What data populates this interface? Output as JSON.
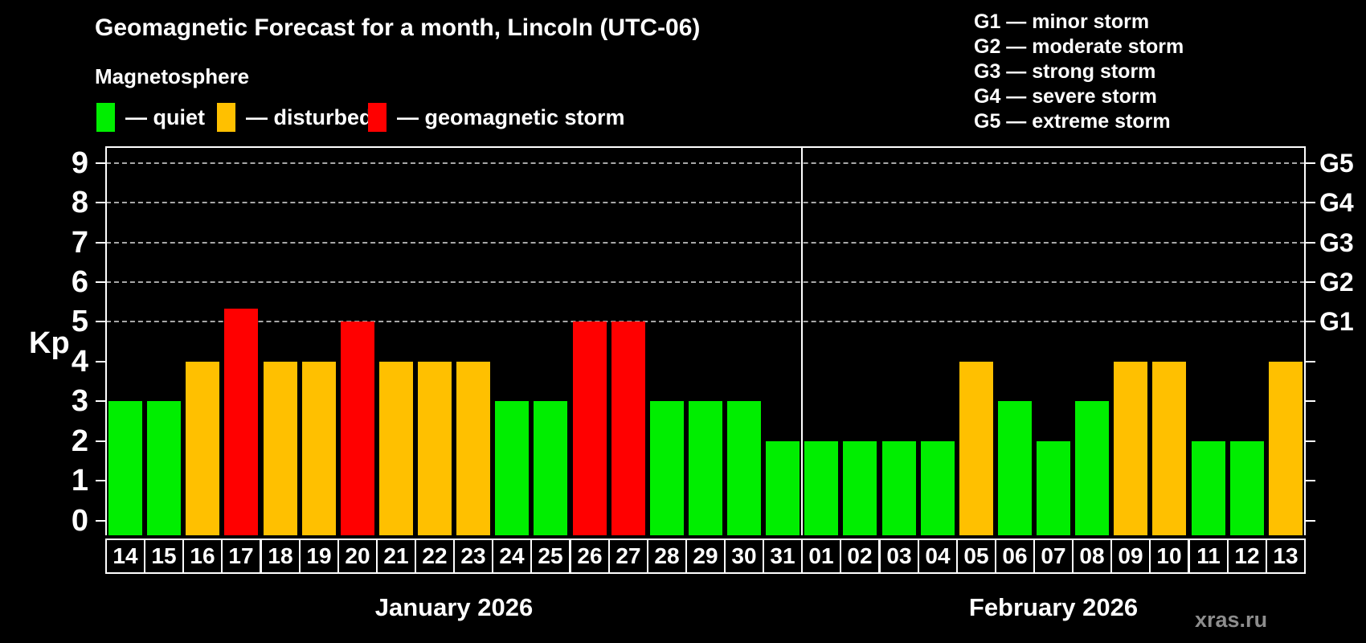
{
  "header": {
    "title": "Geomagnetic Forecast for a month, Lincoln (UTC-06)",
    "subtitle": "Magnetosphere"
  },
  "legend": {
    "items": [
      {
        "key": "quiet",
        "label": "— quiet",
        "color": "#00ee00"
      },
      {
        "key": "disturbed",
        "label": "— disturbed",
        "color": "#ffc000"
      },
      {
        "key": "storm",
        "label": "— geomagnetic storm",
        "color": "#ff0000"
      }
    ]
  },
  "storm_scale_legend": [
    "G1 — minor storm",
    "G2 — moderate storm",
    "G3 — strong storm",
    "G4 — severe storm",
    "G5 — extreme storm"
  ],
  "watermark": "xras.ru",
  "chart_data": {
    "type": "bar",
    "title": "Geomagnetic Forecast for a month, Lincoln (UTC-06)",
    "ylabel": "Kp",
    "ylim": [
      0,
      9
    ],
    "y_ticks": [
      0,
      1,
      2,
      3,
      4,
      5,
      6,
      7,
      8,
      9
    ],
    "gridlines_at_kp": [
      5,
      6,
      7,
      8,
      9
    ],
    "grid_style": "dashed horizontal lines at storm levels only",
    "right_axis_labels": [
      {
        "kp": 5,
        "label": "G1"
      },
      {
        "kp": 6,
        "label": "G2"
      },
      {
        "kp": 7,
        "label": "G3"
      },
      {
        "kp": 8,
        "label": "G4"
      },
      {
        "kp": 9,
        "label": "G5"
      }
    ],
    "colors": {
      "quiet": "#00ee00",
      "disturbed": "#ffc000",
      "storm": "#ff0000"
    },
    "bars": [
      {
        "month": "January 2026",
        "day": "14",
        "kp": 3,
        "level": "quiet"
      },
      {
        "month": "January 2026",
        "day": "15",
        "kp": 3,
        "level": "quiet"
      },
      {
        "month": "January 2026",
        "day": "16",
        "kp": 4,
        "level": "disturbed"
      },
      {
        "month": "January 2026",
        "day": "17",
        "kp": 5.33,
        "level": "storm"
      },
      {
        "month": "January 2026",
        "day": "18",
        "kp": 4,
        "level": "disturbed"
      },
      {
        "month": "January 2026",
        "day": "19",
        "kp": 4,
        "level": "disturbed"
      },
      {
        "month": "January 2026",
        "day": "20",
        "kp": 5,
        "level": "storm"
      },
      {
        "month": "January 2026",
        "day": "21",
        "kp": 4,
        "level": "disturbed"
      },
      {
        "month": "January 2026",
        "day": "22",
        "kp": 4,
        "level": "disturbed"
      },
      {
        "month": "January 2026",
        "day": "23",
        "kp": 4,
        "level": "disturbed"
      },
      {
        "month": "January 2026",
        "day": "24",
        "kp": 3,
        "level": "quiet"
      },
      {
        "month": "January 2026",
        "day": "25",
        "kp": 3,
        "level": "quiet"
      },
      {
        "month": "January 2026",
        "day": "26",
        "kp": 5,
        "level": "storm"
      },
      {
        "month": "January 2026",
        "day": "27",
        "kp": 5,
        "level": "storm"
      },
      {
        "month": "January 2026",
        "day": "28",
        "kp": 3,
        "level": "quiet"
      },
      {
        "month": "January 2026",
        "day": "29",
        "kp": 3,
        "level": "quiet"
      },
      {
        "month": "January 2026",
        "day": "30",
        "kp": 3,
        "level": "quiet"
      },
      {
        "month": "January 2026",
        "day": "31",
        "kp": 2,
        "level": "quiet"
      },
      {
        "month": "February 2026",
        "day": "01",
        "kp": 2,
        "level": "quiet"
      },
      {
        "month": "February 2026",
        "day": "02",
        "kp": 2,
        "level": "quiet"
      },
      {
        "month": "February 2026",
        "day": "03",
        "kp": 2,
        "level": "quiet"
      },
      {
        "month": "February 2026",
        "day": "04",
        "kp": 2,
        "level": "quiet"
      },
      {
        "month": "February 2026",
        "day": "05",
        "kp": 4,
        "level": "disturbed"
      },
      {
        "month": "February 2026",
        "day": "06",
        "kp": 3,
        "level": "quiet"
      },
      {
        "month": "February 2026",
        "day": "07",
        "kp": 2,
        "level": "quiet"
      },
      {
        "month": "February 2026",
        "day": "08",
        "kp": 3,
        "level": "quiet"
      },
      {
        "month": "February 2026",
        "day": "09",
        "kp": 4,
        "level": "disturbed"
      },
      {
        "month": "February 2026",
        "day": "10",
        "kp": 4,
        "level": "disturbed"
      },
      {
        "month": "February 2026",
        "day": "11",
        "kp": 2,
        "level": "quiet"
      },
      {
        "month": "February 2026",
        "day": "12",
        "kp": 2,
        "level": "quiet"
      },
      {
        "month": "February 2026",
        "day": "13",
        "kp": 4,
        "level": "disturbed"
      }
    ],
    "legend_position": "top-left",
    "months": [
      "January 2026",
      "February 2026"
    ]
  }
}
